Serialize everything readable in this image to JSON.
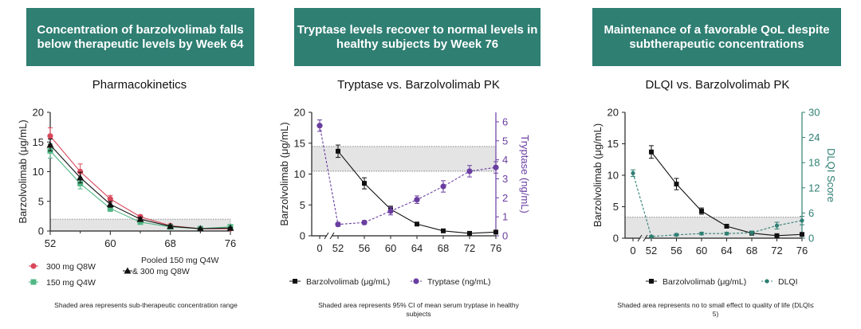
{
  "colors": {
    "banner": "#2f7f73",
    "q8w300": "#d9475a",
    "q4w150": "#4fb784",
    "pooled": "#111111",
    "barzo": "#111111",
    "tryptase": "#6a3ea0",
    "dlqi": "#2f7f73",
    "shade": "#e4e4e4"
  },
  "panels": [
    {
      "banner": "Concentration of barzolvolimab falls below therapeutic levels by Week 64",
      "title": "Pharmacokinetics",
      "footnote": "Shaded area represents sub-therapeutic concentration range"
    },
    {
      "banner": "Tryptase levels recover to normal levels in healthy subjects by Week 76",
      "title": "Tryptase vs. Barzolvolimab PK",
      "footnote": "Shaded area represents 95% CI of mean serum tryptase in healthy subjects"
    },
    {
      "banner": "Maintenance of a favorable QoL despite subtherapeutic concentrations",
      "title": "DLQI vs. Barzolvolimab PK",
      "footnote": "Shaded area represents no to small effect to quality of life (DLQI≤ 5)"
    }
  ],
  "chart_data": [
    {
      "type": "line",
      "title": "Pharmacokinetics",
      "ylabel": "Barzolvolimab (μg/mL)",
      "xlim": [
        52,
        76
      ],
      "ylim": [
        0,
        20
      ],
      "xticks": [
        52,
        60,
        68,
        76
      ],
      "yticks": [
        0,
        5,
        10,
        15,
        20
      ],
      "shade": [
        0,
        2
      ],
      "series": [
        {
          "name": "300 mg Q8W",
          "x": [
            52,
            56,
            60,
            64,
            68,
            72,
            76
          ],
          "y": [
            16.0,
            10.0,
            5.4,
            2.4,
            0.9,
            0.4,
            0.4
          ],
          "err": [
            1.4,
            1.3,
            0.6,
            0.3,
            0.2,
            0.1,
            0.1
          ]
        },
        {
          "name": "150 mg Q4W",
          "x": [
            52,
            56,
            60,
            64,
            68,
            72,
            76
          ],
          "y": [
            13.5,
            8.0,
            3.8,
            1.5,
            0.7,
            0.4,
            0.7
          ],
          "err": [
            1.2,
            0.9,
            0.5,
            0.3,
            0.2,
            0.1,
            0.2
          ]
        },
        {
          "name": "Pooled 150 mg Q4W & 300 mg Q8W",
          "x": [
            52,
            56,
            60,
            64,
            68,
            72,
            76
          ],
          "y": [
            14.5,
            9.0,
            4.5,
            2.0,
            0.8,
            0.4,
            0.5
          ],
          "err": [
            1.0,
            0.9,
            0.5,
            0.3,
            0.2,
            0.1,
            0.1
          ]
        }
      ],
      "legend": [
        "300 mg Q8W",
        "150 mg Q4W",
        "Pooled 150 mg Q4W",
        "& 300 mg Q8W"
      ]
    },
    {
      "type": "line",
      "title": "Tryptase vs. Barzolvolimab PK",
      "ylabel": "Barzolvolimab (μg/mL)",
      "y2label": "Tryptase (ng/mL)",
      "xticks": [
        "0",
        "52",
        "56",
        "60",
        "64",
        "68",
        "72",
        "76"
      ],
      "ylim": [
        0,
        20
      ],
      "yticks": [
        0,
        5,
        10,
        15,
        20
      ],
      "y2lim": [
        0,
        6.5
      ],
      "y2ticks": [
        0,
        1,
        2,
        3,
        4,
        5,
        6
      ],
      "shade_y2": [
        3.4,
        4.7
      ],
      "series": [
        {
          "name": "Barzolvolimab (μg/mL)",
          "axis": "left",
          "x": [
            52,
            56,
            60,
            64,
            68,
            72,
            76
          ],
          "y": [
            13.7,
            8.5,
            4.3,
            1.9,
            0.8,
            0.4,
            0.6
          ],
          "err": [
            1.0,
            0.9,
            0.5,
            0.2,
            0.1,
            0.1,
            0.1
          ]
        },
        {
          "name": "Tryptase (ng/mL)",
          "axis": "right",
          "x": [
            0,
            52,
            56,
            60,
            64,
            68,
            72,
            76
          ],
          "y": [
            5.8,
            0.6,
            0.7,
            1.3,
            1.9,
            2.6,
            3.4,
            3.6
          ],
          "err": [
            0.3,
            0.1,
            0.1,
            0.2,
            0.2,
            0.3,
            0.3,
            0.3
          ]
        }
      ],
      "legend": [
        "Barzolvolimab (μg/mL)",
        "Tryptase (ng/mL)"
      ]
    },
    {
      "type": "line",
      "title": "DLQI vs. Barzolvolimab PK",
      "ylabel": "Barzolvolimab (μg/mL)",
      "y2label": "DLQI Score",
      "xticks": [
        "0",
        "52",
        "56",
        "60",
        "64",
        "68",
        "72",
        "76"
      ],
      "ylim": [
        0,
        20
      ],
      "yticks": [
        0,
        5,
        10,
        15,
        20
      ],
      "y2lim": [
        0,
        30
      ],
      "y2ticks": [
        0,
        6,
        12,
        18,
        24,
        30
      ],
      "shade_y2": [
        0,
        5
      ],
      "series": [
        {
          "name": "Barzolvolimab (μg/mL)",
          "axis": "left",
          "x": [
            52,
            56,
            60,
            64,
            68,
            72,
            76
          ],
          "y": [
            13.7,
            8.6,
            4.3,
            1.9,
            0.8,
            0.4,
            0.6
          ],
          "err": [
            1.0,
            0.9,
            0.5,
            0.2,
            0.1,
            0.1,
            0.1
          ]
        },
        {
          "name": "DLQI",
          "axis": "right",
          "x": [
            0,
            52,
            56,
            60,
            64,
            68,
            72,
            76
          ],
          "y": [
            15.5,
            0.4,
            0.8,
            1.1,
            1.1,
            1.3,
            3.0,
            4.2
          ],
          "err": [
            0.8,
            0.2,
            0.3,
            0.3,
            0.3,
            0.4,
            0.8,
            1.0
          ]
        }
      ],
      "legend": [
        "Barzolvolimab (μg/mL)",
        "DLQI"
      ]
    }
  ]
}
